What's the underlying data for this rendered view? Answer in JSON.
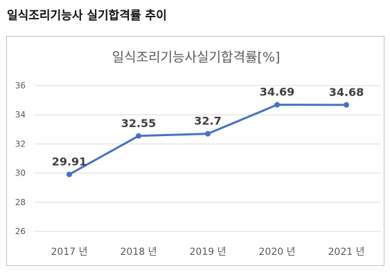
{
  "page": {
    "title": "일식조리기능사 실기합격률 추이"
  },
  "chart_data": {
    "type": "line",
    "title": "일식조리기능사실기합격률[%]",
    "categories": [
      "2017 년",
      "2018 년",
      "2019 년",
      "2020 년",
      "2021 년"
    ],
    "series": [
      {
        "values": [
          29.91,
          32.55,
          32.7,
          34.69,
          34.68
        ],
        "data_labels": [
          "29.91",
          "32.55",
          "32.7",
          "34.69",
          "34.68"
        ],
        "color": "#4472c4"
      }
    ],
    "ylim": [
      26,
      36
    ],
    "yticks": [
      26,
      28,
      30,
      32,
      34,
      36
    ],
    "ytick_labels": [
      "26",
      "28",
      "30",
      "32",
      "34",
      "36"
    ],
    "xlabel": "",
    "ylabel": "",
    "grid": true,
    "legend": "none"
  }
}
